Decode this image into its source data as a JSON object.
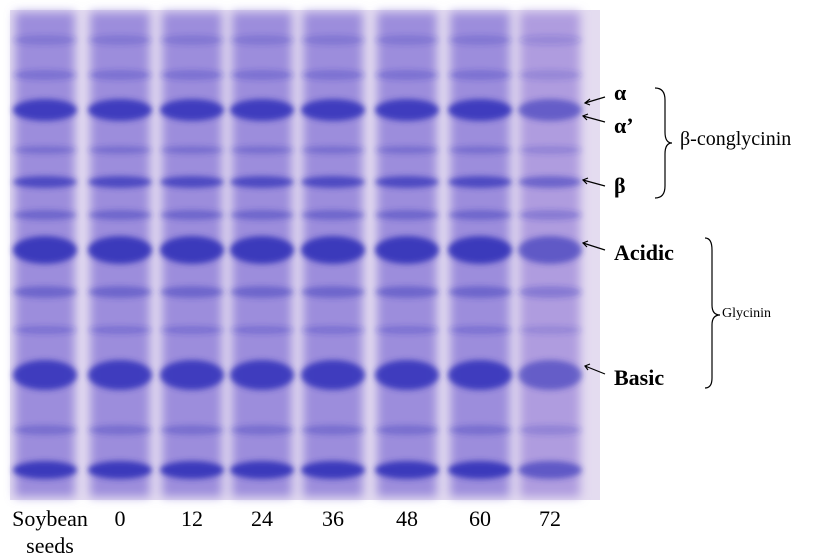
{
  "lane_labels": [
    "Soybean seeds",
    "0",
    "12",
    "24",
    "36",
    "48",
    "60",
    "72"
  ],
  "band_labels": {
    "alpha": "α",
    "alpha_prime": "α’",
    "beta": "β",
    "acidic": "Acidic",
    "basic": "Basic"
  },
  "groups": {
    "conglycinin": "β-conglycinin",
    "glycinin": "Glycinin"
  }
}
